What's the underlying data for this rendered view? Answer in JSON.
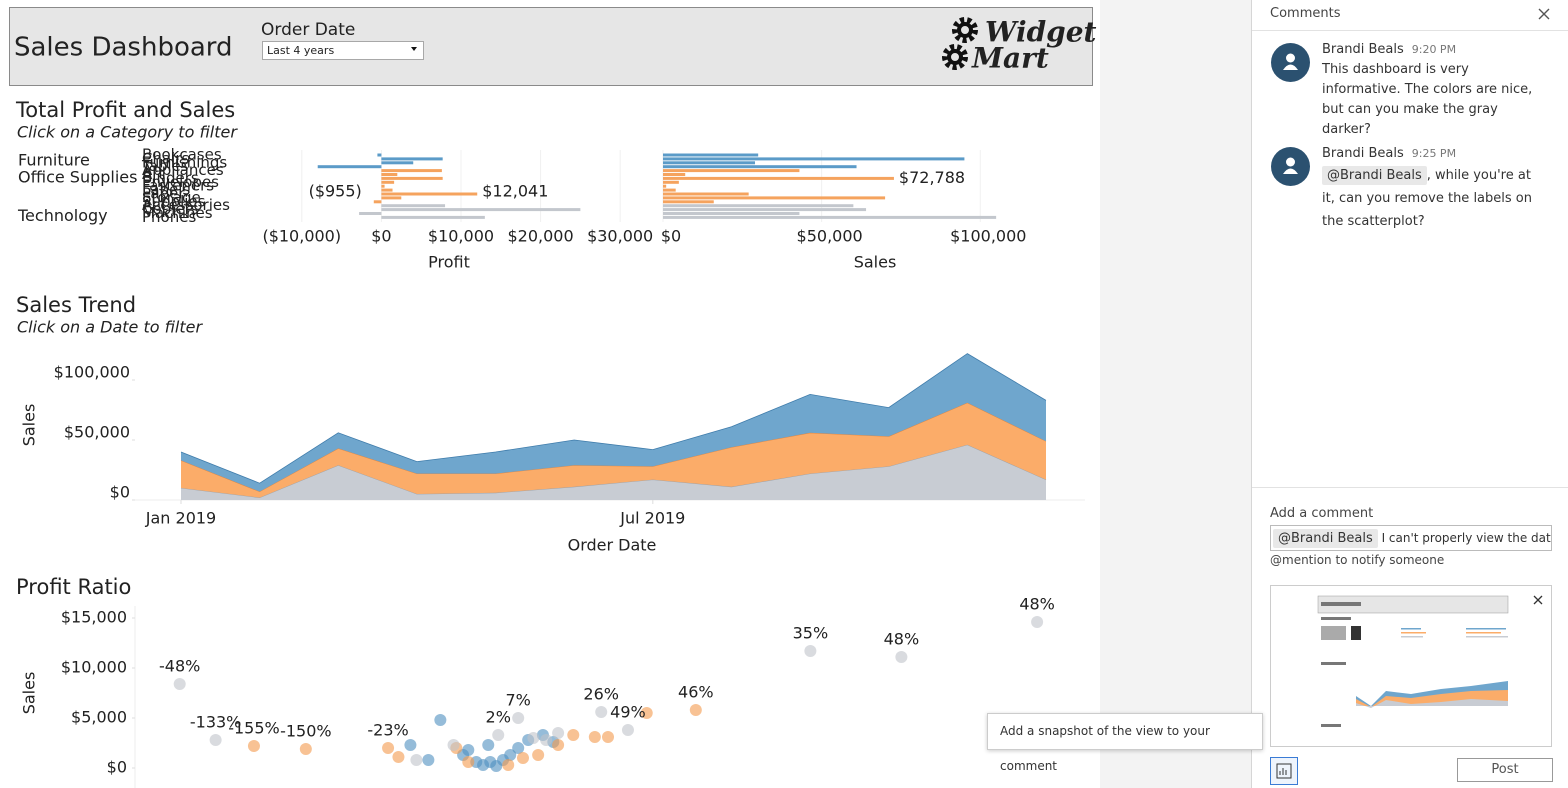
{
  "header": {
    "title": "Sales Dashboard",
    "filter_label": "Order Date",
    "filter_value": "Last 4 years",
    "logo": [
      "Widget",
      "Mart"
    ]
  },
  "profit_sales": {
    "type": "bar",
    "title": "Total Profit and Sales",
    "subtitle": "Click on a Category to filter",
    "groups": [
      {
        "name": "Furniture",
        "color": "#5b9bc8",
        "subcategories": [
          "Bookcases",
          "Chairs",
          "Furnishings",
          "Tables"
        ],
        "profit": [
          -500,
          7700,
          4000,
          -8000
        ],
        "sales": [
          30000,
          95000,
          29000,
          61000
        ]
      },
      {
        "name": "Office Supplies",
        "color": "#f5a35e",
        "subcategories": [
          "Appliances",
          "Art",
          "Binders",
          "Envelopes",
          "Fasteners",
          "Labels",
          "Paper",
          "Storage",
          "Supplies"
        ],
        "profit": [
          7600,
          2000,
          7700,
          1600,
          400,
          1400,
          12041,
          2500,
          -955
        ],
        "profit_value_labels": [
          null,
          null,
          null,
          null,
          null,
          null,
          "$12,041",
          null,
          "($955)"
        ],
        "sales": [
          43000,
          7000,
          72788,
          5000,
          1000,
          4000,
          27000,
          70000,
          16000
        ],
        "sales_value_labels": [
          null,
          null,
          "$72,788",
          null,
          null,
          null,
          null,
          null,
          null
        ]
      },
      {
        "name": "Technology",
        "color": "#c3c7cd",
        "subcategories": [
          "Accessories",
          "Copiers",
          "Machines",
          "Phones"
        ],
        "profit": [
          8000,
          25000,
          -2800,
          13000
        ],
        "sales": [
          60000,
          64000,
          43000,
          105000
        ]
      }
    ],
    "profit_axis": {
      "title": "Profit",
      "xlim": [
        -15000,
        34000
      ],
      "xticks": [
        {
          "value": -10000,
          "label": "($10,000)"
        },
        {
          "value": 0,
          "label": "$0"
        },
        {
          "value": 10000,
          "label": "$10,000"
        },
        {
          "value": 20000,
          "label": "$20,000"
        },
        {
          "value": 30000,
          "label": "$30,000"
        }
      ]
    },
    "sales_axis": {
      "title": "Sales",
      "xlim": [
        0,
        110000
      ],
      "xticks": [
        {
          "value": 0,
          "label": "$0"
        },
        {
          "value": 50000,
          "label": "$50,000"
        },
        {
          "value": 100000,
          "label": "$100,000"
        }
      ]
    }
  },
  "sales_trend": {
    "type": "area",
    "stacked": true,
    "title": "Sales Trend",
    "subtitle": "Click on a Date to filter",
    "x": [
      "Jan 2019",
      "Feb 2019",
      "Mar 2019",
      "Apr 2019",
      "May 2019",
      "Jun 2019",
      "Jul 2019",
      "Aug 2019",
      "Sep 2019",
      "Oct 2019",
      "Nov 2019",
      "Dec 2019"
    ],
    "xticks": [
      "Jan 2019",
      "Jul 2019"
    ],
    "x_title": "Order Date",
    "y_title": "Sales",
    "ylim": [
      0,
      125000
    ],
    "yticks": [
      {
        "value": 0,
        "label": "$0"
      },
      {
        "value": 50000,
        "label": "$50,000"
      },
      {
        "value": 100000,
        "label": "$100,000"
      }
    ],
    "series": [
      {
        "color": "#c8ccd3",
        "values": [
          10000,
          2000,
          29000,
          5000,
          6000,
          11000,
          17000,
          11000,
          22000,
          28000,
          46000,
          17000
        ]
      },
      {
        "color": "#fbac69",
        "values": [
          23000,
          5000,
          14000,
          17000,
          16000,
          18000,
          11000,
          33000,
          34000,
          25000,
          35000,
          32000
        ]
      },
      {
        "color": "#6fa6cd",
        "values": [
          7000,
          7000,
          13000,
          10000,
          18000,
          21000,
          14000,
          17000,
          32000,
          24000,
          41000,
          34000
        ]
      }
    ]
  },
  "profit_ratio": {
    "type": "scatter",
    "title": "Profit Ratio",
    "y_title": "Sales",
    "xlim": [
      -4500,
      7400
    ],
    "ylim": [
      0,
      15500
    ],
    "yticks": [
      {
        "value": 0,
        "label": "$0"
      },
      {
        "value": 5000,
        "label": "$5,000"
      },
      {
        "value": 10000,
        "label": "$10,000"
      },
      {
        "value": 15000,
        "label": "$15,000"
      }
    ],
    "series": [
      {
        "color": "#4e8fc0",
        "x": [
          -675,
          -1050,
          -825,
          -390,
          -225,
          -140,
          -50,
          25,
          110,
          200,
          300,
          425,
          610,
          740,
          -325,
          -75
        ],
        "values": [
          4800,
          2300,
          800,
          1300,
          600,
          300,
          600,
          200,
          800,
          1300,
          2000,
          2800,
          3300,
          2600,
          1800,
          2300
        ],
        "labels": [
          null,
          null,
          null,
          null,
          null,
          null,
          null,
          null,
          null,
          null,
          null,
          null,
          null,
          null,
          null,
          null
        ]
      },
      {
        "color": "#f39a4c",
        "x": [
          -3010,
          -2360,
          -1330,
          2525,
          1910,
          -1200,
          -475,
          -325,
          175,
          550,
          800,
          990,
          1260,
          1425,
          360
        ],
        "values": [
          2200,
          1900,
          2000,
          5800,
          5500,
          1100,
          2000,
          600,
          300,
          1300,
          2300,
          3300,
          3100,
          3100,
          1000
        ],
        "labels": [
          "-155%",
          "-150%",
          "-23%",
          "46%",
          null,
          null,
          null,
          null,
          null,
          null,
          null,
          null,
          null,
          null,
          null
        ]
      },
      {
        "color": "#bfc3c9",
        "x": [
          -3940,
          -3490,
          50,
          300,
          1340,
          1675,
          3960,
          5100,
          6800,
          -975,
          -510,
          490,
          650,
          800
        ],
        "values": [
          8400,
          2800,
          3300,
          5000,
          5600,
          3800,
          11700,
          11100,
          14600,
          800,
          2300,
          3000,
          2800,
          3500
        ],
        "labels": [
          "-48%",
          "-133%",
          "2%",
          "7%",
          "26%",
          "49%",
          "35%",
          "48%",
          "48%",
          null,
          null,
          null,
          null,
          null
        ]
      }
    ]
  },
  "comments_panel": {
    "title": "Comments",
    "comments": [
      {
        "author": "Brandi Beals",
        "time": "9:20 PM",
        "text": "This dashboard is very informative. The colors are nice, but can you make the gray darker?"
      },
      {
        "author": "Brandi Beals",
        "time": "9:25 PM",
        "mention": "@Brandi Beals",
        "text": ", while you're at it, can you remove the labels on the scatterplot?"
      }
    ],
    "composer": {
      "label": "Add a comment",
      "mention": "@Brandi Beals",
      "text": "I can't properly view the data.",
      "hint": "@mention to notify someone",
      "tooltip": "Add a snapshot of the view to your comment",
      "button": "Post"
    }
  }
}
